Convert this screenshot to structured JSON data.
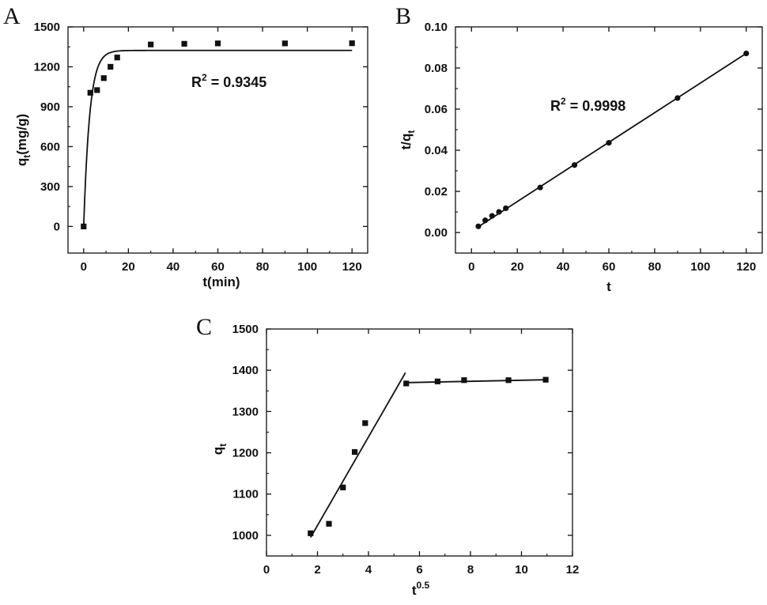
{
  "panels": [
    {
      "letter": "A",
      "xlabel_main": "t(min)",
      "ylabel_main": "q",
      "ylabel_sub": "t",
      "ylabel_rest": "(mg/g)",
      "annotation_main": "R",
      "annotation_sup": "2",
      "annotation_rest": " = 0.9345"
    },
    {
      "letter": "B",
      "xlabel_main": "t",
      "ylabel_main": "t/q",
      "ylabel_sub": "t",
      "annotation_main": "R",
      "annotation_sup": "2",
      "annotation_rest": " = 0.9998"
    },
    {
      "letter": "C",
      "xlabel_main": "t",
      "xlabel_sup": "0.5",
      "ylabel_main": "q",
      "ylabel_sub": "t"
    }
  ],
  "chart_data": [
    {
      "type": "scatter",
      "panel": "A",
      "xlabel": "t(min)",
      "ylabel": "qt(mg/g)",
      "xlim": [
        -7,
        127
      ],
      "ylim": [
        -200,
        1500
      ],
      "xticks": [
        0,
        20,
        40,
        60,
        80,
        100,
        120
      ],
      "yticks": [
        0,
        300,
        600,
        900,
        1200,
        1500
      ],
      "series": [
        {
          "marker": "square",
          "x": [
            0,
            3,
            6,
            9,
            12,
            15,
            30,
            45,
            60,
            90,
            120
          ],
          "y": [
            0,
            1005,
            1025,
            1115,
            1200,
            1270,
            1368,
            1373,
            1376,
            1376,
            1377
          ]
        }
      ],
      "fit": {
        "model": "pseudo-first-order",
        "qe": 1323,
        "k": 0.37,
        "r2": "0.9345"
      }
    },
    {
      "type": "scatter",
      "panel": "B",
      "xlabel": "t",
      "ylabel": "t/qt",
      "xlim": [
        -7,
        127
      ],
      "ylim": [
        -0.01,
        0.1
      ],
      "xticks": [
        0,
        20,
        40,
        60,
        80,
        100,
        120
      ],
      "yticks": [
        0.0,
        0.02,
        0.04,
        0.06,
        0.08,
        0.1
      ],
      "series": [
        {
          "marker": "circle",
          "x": [
            3,
            6,
            9,
            12,
            15,
            30,
            45,
            60,
            90,
            120
          ],
          "y": [
            0.003,
            0.0059,
            0.0081,
            0.01,
            0.0118,
            0.0219,
            0.0328,
            0.0436,
            0.0654,
            0.0871
          ]
        }
      ],
      "fit": {
        "model": "linear",
        "x1": 3,
        "y1": 0.0028,
        "x2": 120,
        "y2": 0.0871,
        "r2": "0.9998"
      }
    },
    {
      "type": "scatter",
      "panel": "C",
      "xlabel": "t^0.5",
      "ylabel": "qt",
      "xlim": [
        0,
        12
      ],
      "ylim": [
        950,
        1500
      ],
      "xticks": [
        0,
        2,
        4,
        6,
        8,
        10,
        12
      ],
      "yticks": [
        1000,
        1100,
        1200,
        1300,
        1400,
        1500
      ],
      "series": [
        {
          "marker": "square",
          "x": [
            1.73,
            2.45,
            3.0,
            3.46,
            3.87,
            5.48,
            6.71,
            7.75,
            9.49,
            10.95
          ],
          "y": [
            1005,
            1028,
            1116,
            1202,
            1272,
            1368,
            1373,
            1376,
            1376,
            1377
          ]
        }
      ],
      "fits": [
        {
          "x1": 1.73,
          "y1": 995,
          "x2": 5.45,
          "y2": 1394
        },
        {
          "x1": 5.48,
          "y1": 1370,
          "x2": 10.95,
          "y2": 1377
        }
      ]
    }
  ]
}
